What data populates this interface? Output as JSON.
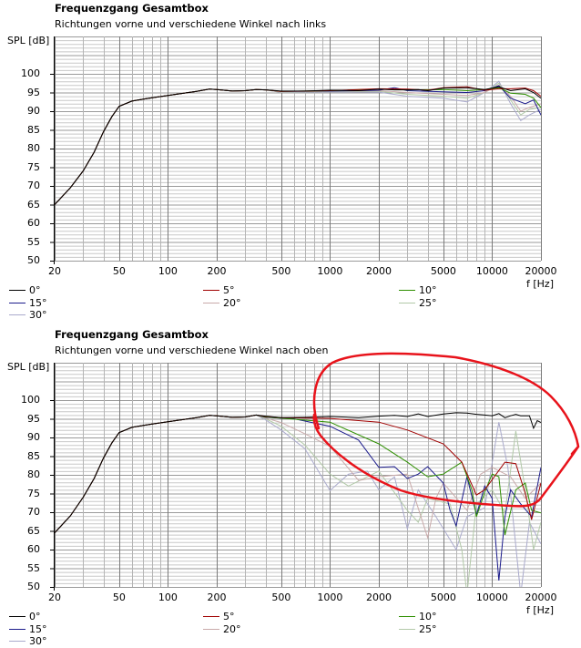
{
  "legend_colors": {
    "0°": "#000000",
    "5°": "#a00000",
    "10°": "#2e8f00",
    "15°": "#1c1c8c",
    "20°": "#c9aaaa",
    "25°": "#b2c9a8",
    "30°": "#aaaacc"
  },
  "annotation_color": "#e8131b",
  "chart_data": [
    {
      "type": "line",
      "title": "Frequenzgang Gesamtbox",
      "subtitle": "Richtungen vorne und verschiedene Winkel nach links",
      "xlabel": "f [Hz]",
      "ylabel": "SPL [dB]",
      "xscale": "log",
      "xlim": [
        20,
        20000
      ],
      "ylim": [
        50,
        110
      ],
      "xticks": [
        20,
        50,
        100,
        200,
        500,
        1000,
        2000,
        5000,
        10000,
        20000
      ],
      "yticks": [
        50,
        55,
        60,
        65,
        70,
        75,
        80,
        85,
        90,
        95,
        100
      ],
      "grid": true,
      "legend_position": "bottom",
      "common_low_points": [
        [
          20,
          65
        ],
        [
          25,
          69.5
        ],
        [
          30,
          74
        ],
        [
          35,
          79
        ],
        [
          40,
          84.5
        ],
        [
          45,
          88.5
        ],
        [
          50,
          91.3
        ],
        [
          60,
          92.7
        ],
        [
          70,
          93.2
        ],
        [
          80,
          93.6
        ],
        [
          100,
          94.2
        ],
        [
          150,
          95.3
        ],
        [
          180,
          95.9
        ],
        [
          200,
          95.8
        ],
        [
          250,
          95.4
        ],
        [
          300,
          95.5
        ],
        [
          350,
          95.8
        ],
        [
          400,
          95.7
        ]
      ],
      "series": [
        {
          "name": "0°",
          "points": [
            [
              500,
              95.4
            ],
            [
              700,
              95.4
            ],
            [
              1000,
              95.6
            ],
            [
              1500,
              95.5
            ],
            [
              2000,
              95.9
            ],
            [
              2500,
              95.7
            ],
            [
              3000,
              95.7
            ],
            [
              3500,
              95.8
            ],
            [
              4000,
              95.5
            ],
            [
              5000,
              96.2
            ],
            [
              7000,
              96.3
            ],
            [
              9000,
              95.8
            ],
            [
              11000,
              96.5
            ],
            [
              13000,
              95.5
            ],
            [
              16000,
              96
            ],
            [
              18000,
              95
            ],
            [
              20000,
              93.5
            ]
          ]
        },
        {
          "name": "5°",
          "points": [
            [
              500,
              95.3
            ],
            [
              1000,
              95.5
            ],
            [
              2000,
              96
            ],
            [
              3000,
              95.9
            ],
            [
              4000,
              95.6
            ],
            [
              5000,
              96.3
            ],
            [
              7000,
              96.5
            ],
            [
              9000,
              95.6
            ],
            [
              11000,
              96
            ],
            [
              13000,
              96
            ],
            [
              16000,
              96.2
            ],
            [
              18000,
              95.5
            ],
            [
              20000,
              94
            ]
          ]
        },
        {
          "name": "10°",
          "points": [
            [
              500,
              95.3
            ],
            [
              1000,
              95.5
            ],
            [
              2000,
              95.9
            ],
            [
              3000,
              95.7
            ],
            [
              5000,
              95.8
            ],
            [
              7000,
              95.5
            ],
            [
              9000,
              95.8
            ],
            [
              11000,
              96.3
            ],
            [
              13000,
              94.8
            ],
            [
              16000,
              94.5
            ],
            [
              18000,
              93.5
            ],
            [
              20000,
              91
            ]
          ]
        },
        {
          "name": "15°",
          "points": [
            [
              500,
              95.3
            ],
            [
              1000,
              95.4
            ],
            [
              1500,
              95.5
            ],
            [
              2000,
              95.6
            ],
            [
              2500,
              96.3
            ],
            [
              3000,
              95.5
            ],
            [
              5000,
              95.2
            ],
            [
              7000,
              95
            ],
            [
              9000,
              95.5
            ],
            [
              11000,
              96.8
            ],
            [
              13000,
              93.5
            ],
            [
              16000,
              92
            ],
            [
              18000,
              93
            ],
            [
              20000,
              89
            ]
          ]
        },
        {
          "name": "20°",
          "points": [
            [
              500,
              95.2
            ],
            [
              1000,
              95.4
            ],
            [
              2000,
              95.5
            ],
            [
              3000,
              95
            ],
            [
              5000,
              94.5
            ],
            [
              7000,
              94.2
            ],
            [
              9000,
              95
            ],
            [
              11000,
              97
            ],
            [
              13000,
              94
            ],
            [
              15000,
              90
            ],
            [
              17000,
              91
            ],
            [
              20000,
              92
            ]
          ]
        },
        {
          "name": "25°",
          "points": [
            [
              500,
              95.1
            ],
            [
              1000,
              95.3
            ],
            [
              2000,
              95.3
            ],
            [
              3000,
              94.5
            ],
            [
              5000,
              94
            ],
            [
              7000,
              93.5
            ],
            [
              9000,
              95
            ],
            [
              11000,
              97.5
            ],
            [
              13000,
              93
            ],
            [
              15000,
              89
            ],
            [
              17000,
              90.5
            ],
            [
              20000,
              91
            ]
          ]
        },
        {
          "name": "30°",
          "points": [
            [
              500,
              95
            ],
            [
              1000,
              95.2
            ],
            [
              2000,
              95.1
            ],
            [
              3000,
              94
            ],
            [
              5000,
              93.5
            ],
            [
              7000,
              92.5
            ],
            [
              9000,
              95
            ],
            [
              11000,
              98
            ],
            [
              13000,
              92
            ],
            [
              15000,
              87.5
            ],
            [
              17000,
              89
            ],
            [
              20000,
              90.5
            ]
          ]
        }
      ]
    },
    {
      "type": "line",
      "title": "Frequenzgang Gesamtbox",
      "subtitle": "Richtungen vorne und verschiedene Winkel nach oben",
      "xlabel": "f [Hz]",
      "ylabel": "SPL [dB]",
      "xscale": "log",
      "xlim": [
        20,
        20000
      ],
      "ylim": [
        50,
        110
      ],
      "xticks": [
        20,
        50,
        100,
        200,
        500,
        1000,
        2000,
        5000,
        10000,
        20000
      ],
      "yticks": [
        50,
        55,
        60,
        65,
        70,
        75,
        80,
        85,
        90,
        95,
        100
      ],
      "grid": true,
      "legend_position": "bottom",
      "common_low_points": [
        [
          20,
          64.5
        ],
        [
          25,
          69
        ],
        [
          30,
          74
        ],
        [
          35,
          79
        ],
        [
          40,
          84.5
        ],
        [
          45,
          88.5
        ],
        [
          50,
          91.3
        ],
        [
          60,
          92.7
        ],
        [
          70,
          93.2
        ],
        [
          80,
          93.6
        ],
        [
          100,
          94.2
        ],
        [
          150,
          95.3
        ],
        [
          180,
          95.9
        ],
        [
          200,
          95.8
        ],
        [
          250,
          95.4
        ],
        [
          300,
          95.5
        ],
        [
          350,
          96
        ]
      ],
      "series": [
        {
          "name": "0°",
          "points": [
            [
              400,
              95.7
            ],
            [
              500,
              95.3
            ],
            [
              700,
              95.4
            ],
            [
              1000,
              95.6
            ],
            [
              1500,
              95.3
            ],
            [
              2000,
              95.7
            ],
            [
              2500,
              95.9
            ],
            [
              3000,
              95.6
            ],
            [
              3500,
              96.3
            ],
            [
              4000,
              95.6
            ],
            [
              5000,
              96.3
            ],
            [
              6000,
              96.6
            ],
            [
              7000,
              96.5
            ],
            [
              8000,
              96.2
            ],
            [
              9000,
              96
            ],
            [
              10000,
              95.8
            ],
            [
              11000,
              96.4
            ],
            [
              12000,
              95.3
            ],
            [
              13000,
              95.8
            ],
            [
              14000,
              96.2
            ],
            [
              15000,
              95.8
            ],
            [
              17000,
              95.8
            ],
            [
              18000,
              92.5
            ],
            [
              19000,
              94.5
            ],
            [
              20000,
              94
            ]
          ]
        },
        {
          "name": "5°",
          "points": [
            [
              400,
              95.6
            ],
            [
              500,
              95.3
            ],
            [
              1000,
              95.1
            ],
            [
              2000,
              94.1
            ],
            [
              3000,
              92
            ],
            [
              5000,
              88.3
            ],
            [
              6500,
              83.4
            ],
            [
              8000,
              74.6
            ],
            [
              9000,
              76
            ],
            [
              12000,
              83.4
            ],
            [
              14000,
              83
            ],
            [
              16000,
              75
            ],
            [
              17500,
              68
            ],
            [
              20000,
              77.8
            ]
          ]
        },
        {
          "name": "10°",
          "points": [
            [
              400,
              95.5
            ],
            [
              500,
              95.2
            ],
            [
              1000,
              94.1
            ],
            [
              2000,
              88.3
            ],
            [
              3000,
              83.4
            ],
            [
              4000,
              79.5
            ],
            [
              5000,
              80.2
            ],
            [
              6500,
              83.4
            ],
            [
              7500,
              76
            ],
            [
              8000,
              68.8
            ],
            [
              9000,
              75.4
            ],
            [
              10000,
              80.2
            ],
            [
              11000,
              79.5
            ],
            [
              12000,
              63.9
            ],
            [
              14000,
              76
            ],
            [
              16000,
              77.8
            ],
            [
              17500,
              70.5
            ],
            [
              20000,
              69.8
            ]
          ]
        },
        {
          "name": "15°",
          "points": [
            [
              400,
              95.4
            ],
            [
              600,
              95
            ],
            [
              1000,
              93
            ],
            [
              1500,
              89.3
            ],
            [
              2000,
              82
            ],
            [
              2500,
              82.2
            ],
            [
              3000,
              79
            ],
            [
              3500,
              80.2
            ],
            [
              4000,
              82.2
            ],
            [
              5000,
              77.8
            ],
            [
              5500,
              70.5
            ],
            [
              6000,
              66.4
            ],
            [
              7000,
              79.5
            ],
            [
              8000,
              69.3
            ],
            [
              9000,
              77
            ],
            [
              10000,
              73.7
            ],
            [
              11000,
              51.7
            ],
            [
              12000,
              68.8
            ],
            [
              13000,
              76
            ],
            [
              15000,
              72.2
            ],
            [
              17500,
              68.8
            ],
            [
              20000,
              82
            ]
          ]
        },
        {
          "name": "20°",
          "points": [
            [
              400,
              95.2
            ],
            [
              500,
              94
            ],
            [
              700,
              91
            ],
            [
              1000,
              87.6
            ],
            [
              1500,
              78.5
            ],
            [
              2000,
              79.5
            ],
            [
              3000,
              80.2
            ],
            [
              4000,
              63.2
            ],
            [
              4500,
              73.7
            ],
            [
              5000,
              77.8
            ],
            [
              7000,
              70.5
            ],
            [
              8500,
              80.2
            ],
            [
              10000,
              82
            ],
            [
              13000,
              79.5
            ],
            [
              16000,
              73.7
            ],
            [
              20000,
              77.8
            ]
          ]
        },
        {
          "name": "25°",
          "points": [
            [
              400,
              95
            ],
            [
              500,
              93
            ],
            [
              700,
              88
            ],
            [
              1000,
              80.2
            ],
            [
              1300,
              77
            ],
            [
              2000,
              81
            ],
            [
              3000,
              70.5
            ],
            [
              3500,
              67.3
            ],
            [
              4000,
              73.7
            ],
            [
              5500,
              72.2
            ],
            [
              6500,
              60
            ],
            [
              7000,
              48
            ],
            [
              8000,
              72.2
            ],
            [
              10000,
              76
            ],
            [
              12000,
              69.8
            ],
            [
              14000,
              91.7
            ],
            [
              16000,
              76
            ],
            [
              18000,
              60
            ],
            [
              20000,
              67.3
            ]
          ]
        },
        {
          "name": "30°",
          "points": [
            [
              400,
              94.7
            ],
            [
              500,
              92
            ],
            [
              700,
              87
            ],
            [
              1000,
              75.8
            ],
            [
              1300,
              80.2
            ],
            [
              1700,
              81
            ],
            [
              2000,
              76
            ],
            [
              2500,
              79.5
            ],
            [
              3000,
              65.6
            ],
            [
              3500,
              76
            ],
            [
              4500,
              68.8
            ],
            [
              6000,
              60
            ],
            [
              7000,
              68.8
            ],
            [
              9000,
              71.2
            ],
            [
              11000,
              94.1
            ],
            [
              12500,
              82
            ],
            [
              15000,
              48
            ],
            [
              17000,
              67.3
            ],
            [
              20000,
              61.5
            ]
          ]
        }
      ]
    }
  ]
}
